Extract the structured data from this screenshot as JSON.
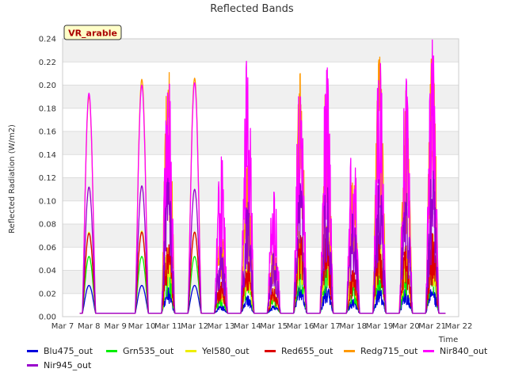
{
  "chart_data": {
    "type": "line",
    "title": "Reflected Bands",
    "xlabel": "Time",
    "ylabel": "Reflected Radiation (W/m2)",
    "annotation": "VR_arable",
    "ylim": [
      0,
      0.24
    ],
    "yticks": [
      0.0,
      0.02,
      0.04,
      0.06,
      0.08,
      0.1,
      0.12,
      0.14,
      0.16,
      0.18,
      0.2,
      0.22,
      0.24
    ],
    "ytick_labels": [
      "0.00",
      "0.02",
      "0.04",
      "0.06",
      "0.08",
      "0.10",
      "0.12",
      "0.14",
      "0.16",
      "0.18",
      "0.20",
      "0.22",
      "0.24"
    ],
    "xlim": [
      7,
      22
    ],
    "xtick_labels": [
      "Mar 7",
      "Mar 8",
      "Mar 9",
      "Mar 10",
      "Mar 11",
      "Mar 12",
      "Mar 13",
      "Mar 14",
      "Mar 15",
      "Mar 16",
      "Mar 17",
      "Mar 18",
      "Mar 19",
      "Mar 20",
      "Mar 21",
      "Mar 22"
    ],
    "grid": true,
    "legend_position": "bottom",
    "days": [
      8,
      10,
      11,
      12,
      13,
      14,
      15,
      16,
      17,
      18,
      19,
      20,
      21
    ],
    "series": [
      {
        "name": "Blu475_out",
        "color": "#0000dd",
        "peaks": [
          0.027,
          0.027,
          0.025,
          0.027,
          0.01,
          0.018,
          0.01,
          0.027,
          0.027,
          0.015,
          0.026,
          0.024,
          0.026
        ]
      },
      {
        "name": "Grn535_out",
        "color": "#00ee00",
        "peaks": [
          0.052,
          0.052,
          0.045,
          0.052,
          0.02,
          0.035,
          0.018,
          0.055,
          0.056,
          0.03,
          0.054,
          0.045,
          0.052
        ]
      },
      {
        "name": "Yel580_out",
        "color": "#eeee00",
        "peaks": [
          0.073,
          0.074,
          0.065,
          0.073,
          0.03,
          0.05,
          0.026,
          0.076,
          0.078,
          0.042,
          0.074,
          0.062,
          0.073
        ]
      },
      {
        "name": "Red655_out",
        "color": "#dd0000",
        "peaks": [
          0.072,
          0.073,
          0.063,
          0.073,
          0.03,
          0.05,
          0.025,
          0.075,
          0.077,
          0.04,
          0.072,
          0.061,
          0.072
        ]
      },
      {
        "name": "Redg715_out",
        "color": "#ff9900",
        "peaks": [
          0.19,
          0.205,
          0.218,
          0.206,
          0.08,
          0.13,
          0.065,
          0.21,
          0.21,
          0.12,
          0.225,
          0.195,
          0.23
        ]
      },
      {
        "name": "Nir840_out",
        "color": "#ff00ff",
        "peaks": [
          0.193,
          0.2,
          0.213,
          0.202,
          0.143,
          0.228,
          0.117,
          0.224,
          0.218,
          0.165,
          0.233,
          0.206,
          0.239
        ]
      },
      {
        "name": "Nir945_out",
        "color": "#9900cc",
        "peaks": [
          0.112,
          0.113,
          0.12,
          0.11,
          0.06,
          0.1,
          0.055,
          0.115,
          0.115,
          0.09,
          0.12,
          0.11,
          0.13
        ]
      }
    ],
    "baseline": 0.003
  }
}
